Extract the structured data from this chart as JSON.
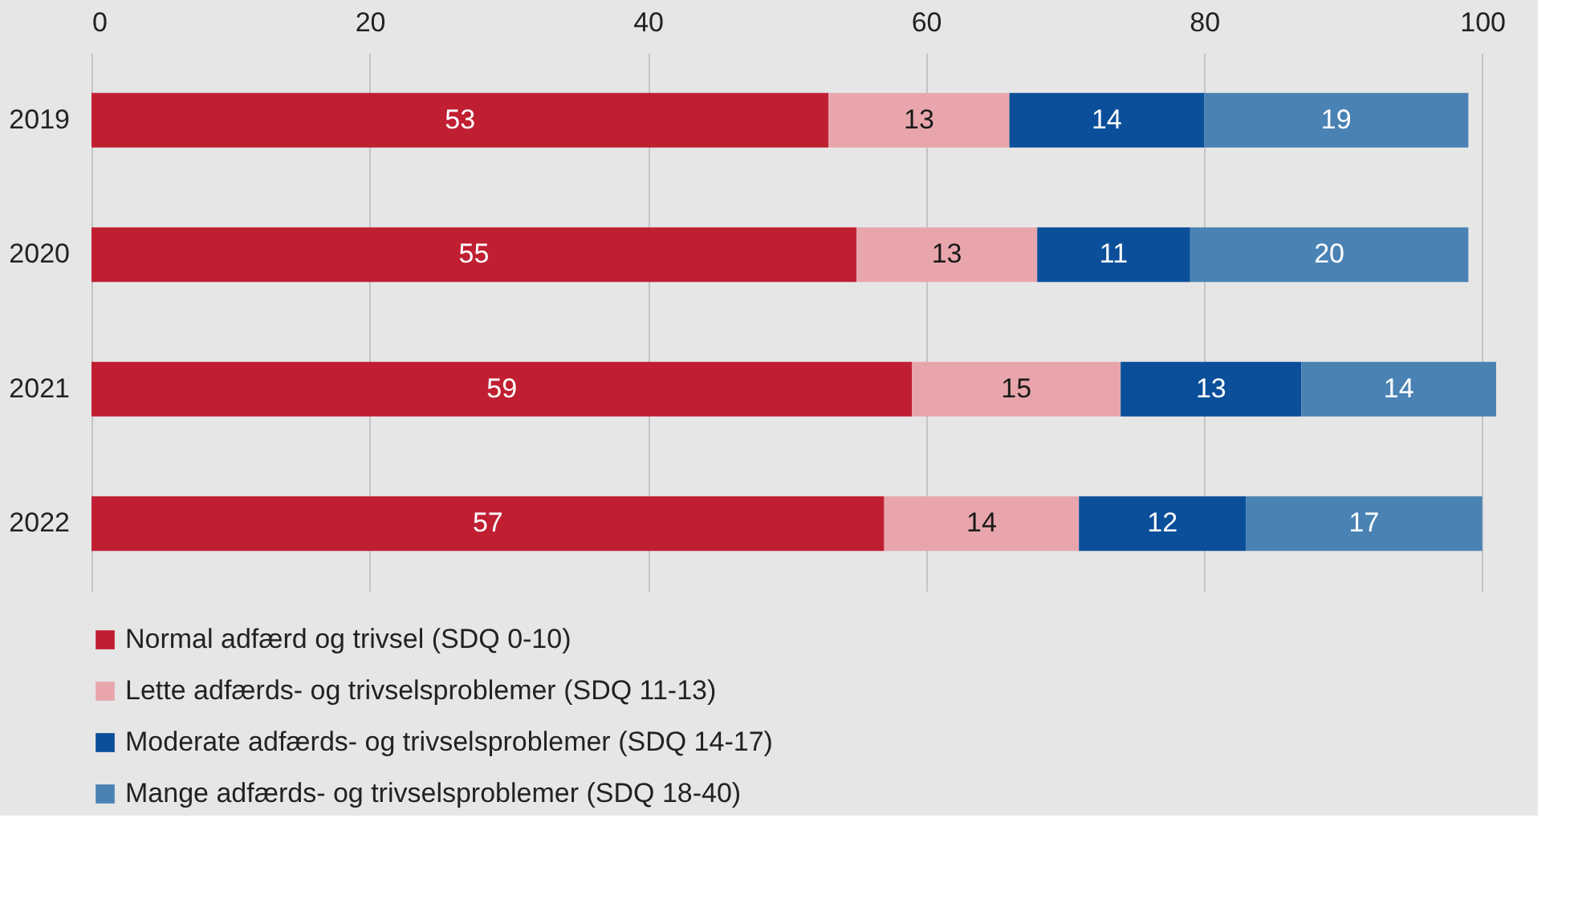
{
  "chart_data": {
    "type": "bar",
    "orientation": "horizontal",
    "stacked": true,
    "data_labels": true,
    "categories": [
      "2019",
      "2020",
      "2021",
      "2022"
    ],
    "series": [
      {
        "name": "Normal adfærd og trivsel (SDQ 0-10)",
        "color": "#c01f32",
        "values": [
          53,
          55,
          59,
          57
        ]
      },
      {
        "name": "Lette adfærds- og trivselsproblemer (SDQ 11-13)",
        "color": "#e8a6ac",
        "values": [
          13,
          13,
          15,
          14
        ]
      },
      {
        "name": "Moderate adfærds- og trivselsproblemer (SDQ 14-17)",
        "color": "#0b4f9a",
        "values": [
          14,
          11,
          13,
          12
        ]
      },
      {
        "name": "Mange adfærds- og trivselsproblemer (SDQ 18-40)",
        "color": "#4a82b4",
        "values": [
          19,
          20,
          14,
          17
        ]
      }
    ],
    "xlim": [
      0,
      101
    ],
    "xticks": [
      0,
      20,
      40,
      60,
      80,
      100
    ],
    "grid": "x",
    "legend": "bottom"
  }
}
